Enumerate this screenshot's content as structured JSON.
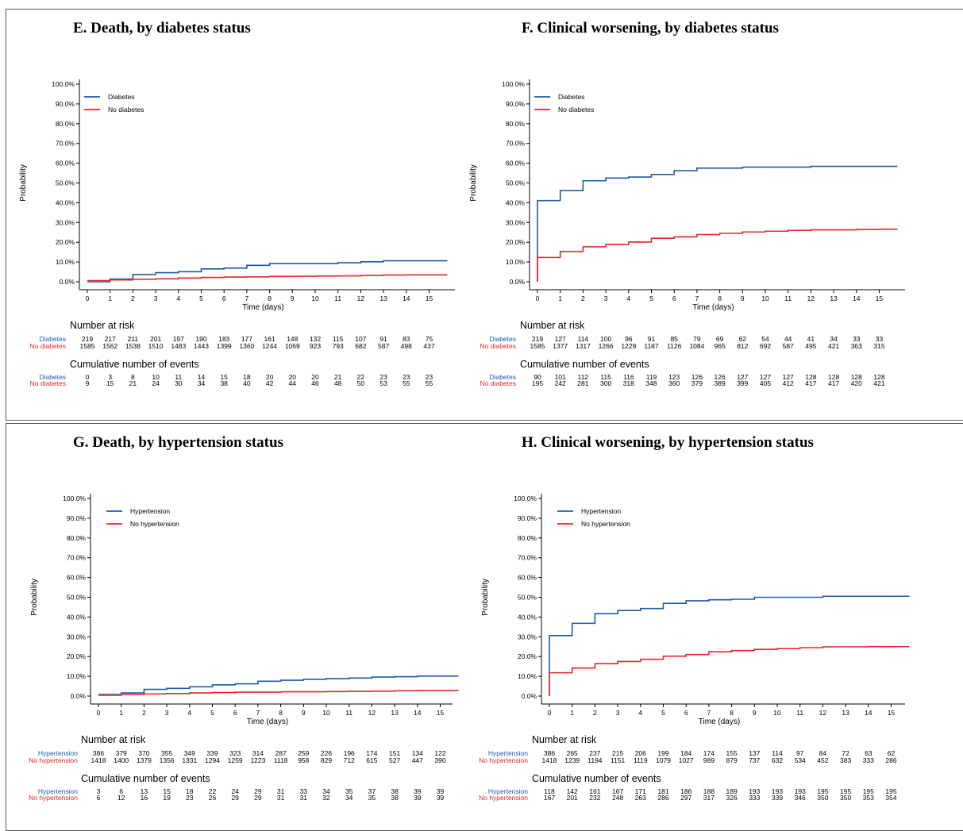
{
  "colors": {
    "series1": "#1f5aa6",
    "series2": "#e8262a"
  },
  "ylabels": [
    "0.0%",
    "10.0%",
    "20.0%",
    "30.0%",
    "40.0%",
    "50.0%",
    "60.0%",
    "70.0%",
    "80.0%",
    "90.0%",
    "100.0%"
  ],
  "xlabels": [
    "0",
    "1",
    "2",
    "3",
    "4",
    "5",
    "6",
    "7",
    "8",
    "9",
    "10",
    "11",
    "12",
    "13",
    "14",
    "15"
  ],
  "common": {
    "ylabel": "Probability",
    "xlabel": "Time (days)",
    "risk_title": "Number at risk",
    "events_title": "Cumulative number of events"
  },
  "chart_data": [
    {
      "type": "line",
      "title": "E. Death, by diabetes status",
      "xlabel": "Time (days)",
      "ylabel": "Probability",
      "xlim": [
        0,
        16
      ],
      "ylim": [
        0,
        1
      ],
      "legend_position": "top-left",
      "series": [
        {
          "name": "Diabetes",
          "color": "#1f5aa6",
          "x": [
            0,
            1,
            2,
            3,
            4,
            5,
            6,
            7,
            8,
            9,
            10,
            11,
            12,
            13,
            14,
            15,
            15.8
          ],
          "y": [
            0.0,
            0.014,
            0.037,
            0.046,
            0.051,
            0.065,
            0.069,
            0.083,
            0.092,
            0.092,
            0.092,
            0.096,
            0.101,
            0.106,
            0.106,
            0.106,
            0.106
          ]
        },
        {
          "name": "No diabetes",
          "color": "#e8262a",
          "x": [
            0,
            1,
            2,
            3,
            4,
            5,
            6,
            7,
            8,
            9,
            10,
            11,
            12,
            13,
            14,
            15,
            15.8
          ],
          "y": [
            0.006,
            0.009,
            0.013,
            0.015,
            0.019,
            0.022,
            0.024,
            0.025,
            0.027,
            0.028,
            0.029,
            0.03,
            0.032,
            0.034,
            0.035,
            0.035,
            0.035
          ]
        }
      ],
      "risk_table": {
        "labels": [
          "Diabetes",
          "No diabetes"
        ],
        "rows": [
          [
            "219",
            "217",
            "211",
            "201",
            "197",
            "190",
            "183",
            "177",
            "161",
            "148",
            "132",
            "115",
            "107",
            "91",
            "83",
            "75"
          ],
          [
            "1585",
            "1562",
            "1538",
            "1510",
            "1483",
            "1443",
            "1399",
            "1360",
            "1244",
            "1069",
            "923",
            "793",
            "682",
            "587",
            "498",
            "437"
          ]
        ]
      },
      "events_table": {
        "labels": [
          "Diabetes",
          "No diabetes"
        ],
        "rows": [
          [
            "0",
            "3",
            "8",
            "10",
            "11",
            "14",
            "15",
            "18",
            "20",
            "20",
            "20",
            "21",
            "22",
            "23",
            "23",
            "23"
          ],
          [
            "9",
            "15",
            "21",
            "24",
            "30",
            "34",
            "38",
            "40",
            "42",
            "44",
            "46",
            "48",
            "50",
            "53",
            "55",
            "55"
          ]
        ]
      }
    },
    {
      "type": "line",
      "title": "F. Clinical worsening, by diabetes status",
      "xlabel": "Time (days)",
      "ylabel": "Probability",
      "xlim": [
        0,
        16
      ],
      "ylim": [
        0,
        1
      ],
      "legend_position": "top-left",
      "series": [
        {
          "name": "Diabetes",
          "color": "#1f5aa6",
          "x": [
            0,
            1,
            2,
            3,
            4,
            5,
            6,
            7,
            8,
            9,
            10,
            11,
            12,
            13,
            14,
            15,
            15.8
          ],
          "y": [
            0.411,
            0.461,
            0.511,
            0.525,
            0.53,
            0.543,
            0.562,
            0.575,
            0.575,
            0.58,
            0.58,
            0.58,
            0.584,
            0.584,
            0.584,
            0.584,
            0.584
          ]
        },
        {
          "name": "No diabetes",
          "color": "#e8262a",
          "x": [
            0,
            1,
            2,
            3,
            4,
            5,
            6,
            7,
            8,
            9,
            10,
            11,
            12,
            13,
            14,
            15,
            15.8
          ],
          "y": [
            0.123,
            0.153,
            0.177,
            0.189,
            0.201,
            0.22,
            0.227,
            0.239,
            0.245,
            0.252,
            0.256,
            0.26,
            0.263,
            0.263,
            0.265,
            0.266,
            0.266
          ]
        }
      ],
      "risk_table": {
        "labels": [
          "Diabetes",
          "No diabetes"
        ],
        "rows": [
          [
            "219",
            "127",
            "114",
            "100",
            "96",
            "91",
            "85",
            "79",
            "69",
            "62",
            "54",
            "44",
            "41",
            "34",
            "33",
            "33"
          ],
          [
            "1585",
            "1377",
            "1317",
            "1266",
            "1229",
            "1187",
            "1126",
            "1084",
            "965",
            "812",
            "692",
            "587",
            "495",
            "421",
            "363",
            "315"
          ]
        ]
      },
      "events_table": {
        "labels": [
          "Diabetes",
          "No diabetes"
        ],
        "rows": [
          [
            "90",
            "101",
            "112",
            "115",
            "116",
            "119",
            "123",
            "126",
            "126",
            "127",
            "127",
            "127",
            "128",
            "128",
            "128",
            "128"
          ],
          [
            "195",
            "242",
            "281",
            "300",
            "318",
            "348",
            "360",
            "379",
            "389",
            "399",
            "405",
            "412",
            "417",
            "417",
            "420",
            "421"
          ]
        ]
      }
    },
    {
      "type": "line",
      "title": "G. Death, by hypertension status",
      "xlabel": "Time (days)",
      "ylabel": "Probability",
      "xlim": [
        0,
        16
      ],
      "ylim": [
        0,
        1
      ],
      "legend_position": "top-left",
      "series": [
        {
          "name": "Hypertension",
          "color": "#1f5aa6",
          "x": [
            0,
            1,
            2,
            3,
            4,
            5,
            6,
            7,
            8,
            9,
            10,
            11,
            12,
            13,
            14,
            15,
            15.8
          ],
          "y": [
            0.008,
            0.016,
            0.034,
            0.039,
            0.047,
            0.057,
            0.062,
            0.075,
            0.08,
            0.085,
            0.088,
            0.091,
            0.096,
            0.098,
            0.101,
            0.101,
            0.101
          ]
        },
        {
          "name": "No hypertension",
          "color": "#e8262a",
          "x": [
            0,
            1,
            2,
            3,
            4,
            5,
            6,
            7,
            8,
            9,
            10,
            11,
            12,
            13,
            14,
            15,
            15.8
          ],
          "y": [
            0.004,
            0.008,
            0.011,
            0.013,
            0.016,
            0.018,
            0.02,
            0.02,
            0.022,
            0.022,
            0.023,
            0.024,
            0.025,
            0.027,
            0.028,
            0.028,
            0.028
          ]
        }
      ],
      "risk_table": {
        "labels": [
          "Hypertension",
          "No hypertension"
        ],
        "rows": [
          [
            "386",
            "379",
            "370",
            "355",
            "349",
            "339",
            "323",
            "314",
            "287",
            "259",
            "226",
            "196",
            "174",
            "151",
            "134",
            "122"
          ],
          [
            "1418",
            "1400",
            "1379",
            "1356",
            "1331",
            "1294",
            "1259",
            "1223",
            "1118",
            "958",
            "829",
            "712",
            "615",
            "527",
            "447",
            "390"
          ]
        ]
      },
      "events_table": {
        "labels": [
          "Hypertension",
          "No hypertension"
        ],
        "rows": [
          [
            "3",
            "6",
            "13",
            "15",
            "18",
            "22",
            "24",
            "29",
            "31",
            "33",
            "34",
            "35",
            "37",
            "38",
            "39",
            "39"
          ],
          [
            "6",
            "12",
            "16",
            "19",
            "23",
            "26",
            "29",
            "29",
            "31",
            "31",
            "32",
            "34",
            "35",
            "38",
            "39",
            "39"
          ]
        ]
      }
    },
    {
      "type": "line",
      "title": "H. Clinical worsening, by hypertension status",
      "xlabel": "Time (days)",
      "ylabel": "Probability",
      "xlim": [
        0,
        16
      ],
      "ylim": [
        0,
        1
      ],
      "legend_position": "top-left",
      "series": [
        {
          "name": "Hypertension",
          "color": "#1f5aa6",
          "x": [
            0,
            1,
            2,
            3,
            4,
            5,
            6,
            7,
            8,
            9,
            10,
            11,
            12,
            13,
            14,
            15,
            15.8
          ],
          "y": [
            0.306,
            0.368,
            0.417,
            0.433,
            0.443,
            0.469,
            0.482,
            0.487,
            0.49,
            0.5,
            0.5,
            0.5,
            0.505,
            0.505,
            0.505,
            0.505,
            0.505
          ]
        },
        {
          "name": "No hypertension",
          "color": "#e8262a",
          "x": [
            0,
            1,
            2,
            3,
            4,
            5,
            6,
            7,
            8,
            9,
            10,
            11,
            12,
            13,
            14,
            15,
            15.8
          ],
          "y": [
            0.118,
            0.142,
            0.164,
            0.175,
            0.186,
            0.202,
            0.21,
            0.224,
            0.23,
            0.236,
            0.24,
            0.245,
            0.249,
            0.249,
            0.25,
            0.25,
            0.25
          ]
        }
      ],
      "risk_table": {
        "labels": [
          "Hypertension",
          "No hypertension"
        ],
        "rows": [
          [
            "386",
            "265",
            "237",
            "215",
            "206",
            "199",
            "184",
            "174",
            "155",
            "137",
            "114",
            "97",
            "84",
            "72",
            "63",
            "62"
          ],
          [
            "1418",
            "1239",
            "1194",
            "1151",
            "1119",
            "1079",
            "1027",
            "989",
            "879",
            "737",
            "632",
            "534",
            "452",
            "383",
            "333",
            "286"
          ]
        ]
      },
      "events_table": {
        "labels": [
          "Hypertension",
          "No hypertension"
        ],
        "rows": [
          [
            "118",
            "142",
            "161",
            "167",
            "171",
            "181",
            "186",
            "188",
            "189",
            "193",
            "193",
            "193",
            "195",
            "195",
            "195",
            "195"
          ],
          [
            "167",
            "201",
            "232",
            "248",
            "263",
            "286",
            "297",
            "317",
            "326",
            "333",
            "339",
            "346",
            "350",
            "350",
            "353",
            "354"
          ]
        ]
      }
    }
  ]
}
